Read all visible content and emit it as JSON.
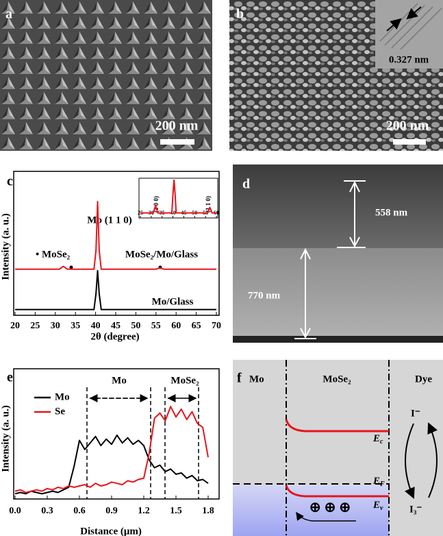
{
  "panels": {
    "a": {
      "label": "a",
      "scale_bar": "200 nm"
    },
    "b": {
      "label": "b",
      "scale_bar": "200 nm",
      "inset_label": "0.327 nm"
    },
    "c": {
      "label": "c",
      "annotations": [
        "Mo (1 1 0)",
        "• MoSe₂",
        "MoSe₂/Mo/Glass",
        "Mo/Glass"
      ],
      "inset_peaks": [
        "(1 0 0)",
        "(1 1 0)"
      ]
    },
    "d": {
      "label": "d",
      "top_thickness": "558 nm",
      "bottom_thickness": "770 nm"
    },
    "e": {
      "label": "e",
      "regions": [
        "Mo",
        "MoSe₂"
      ]
    },
    "f": {
      "label": "f",
      "columns": [
        "Mo",
        "MoSe₂",
        "Dye"
      ],
      "levels": [
        {
          "symbol": "E",
          "subscript": "c"
        },
        {
          "symbol": "E",
          "subscript": "F"
        },
        {
          "symbol": "E",
          "subscript": "v"
        }
      ],
      "holes": "⊕ ⊕ ⊕",
      "redox": [
        "I⁻",
        "I₃⁻"
      ]
    }
  },
  "chart_data": [
    {
      "type": "line",
      "xlabel": "2θ (degree)",
      "ylabel": "Intensity (a. u.)",
      "xlim": [
        20,
        70
      ],
      "xticks": [
        20,
        25,
        30,
        35,
        40,
        45,
        50,
        55,
        60,
        65,
        70
      ],
      "ylim": [
        0,
        10
      ],
      "x": [
        20,
        31,
        32,
        33,
        39.6,
        40.1,
        40.5,
        40.9,
        41.4,
        55,
        56,
        57,
        70
      ],
      "series": [
        {
          "name": "MoSe₂/Mo/Glass",
          "color": "#e8141b",
          "values": [
            3.2,
            3.2,
            3.4,
            3.2,
            3.2,
            4.5,
            7.9,
            4.5,
            3.2,
            3.2,
            3.3,
            3.2,
            3.2
          ]
        },
        {
          "name": "Mo/Glass",
          "color": "#000000",
          "values": [
            0.4,
            0.4,
            0.4,
            0.4,
            0.4,
            1.5,
            3.1,
            1.5,
            0.4,
            0.4,
            0.4,
            0.4,
            0.4
          ]
        }
      ]
    },
    {
      "type": "line",
      "xlim": [
        25,
        60
      ],
      "xticks": [
        25,
        30,
        35,
        40,
        45,
        50,
        55,
        60
      ],
      "ylim": [
        0,
        10
      ],
      "x": [
        25,
        31,
        32,
        33,
        39.5,
        40,
        40.5,
        41,
        41.5,
        56,
        57,
        58,
        60
      ],
      "series": [
        {
          "name": "MoSe₂/Mo/Glass",
          "color": "#e8141b",
          "values": [
            1,
            1,
            3,
            1,
            1,
            6,
            10,
            6,
            1,
            1,
            2.5,
            1,
            1
          ]
        }
      ]
    },
    {
      "type": "line",
      "xlabel": "Distance (μm)",
      "ylabel": "Intensity (a. u.)",
      "xlim": [
        0,
        1.8
      ],
      "xticks": [
        {
          "value": 0,
          "label": "0.0"
        },
        0.3,
        0.6,
        0.9,
        1.2,
        1.5,
        1.8
      ],
      "ylim": [
        0,
        10
      ],
      "x": [
        0,
        0.05,
        0.1,
        0.15,
        0.2,
        0.25,
        0.3,
        0.35,
        0.4,
        0.45,
        0.5,
        0.55,
        0.6,
        0.65,
        0.7,
        0.75,
        0.8,
        0.85,
        0.9,
        0.95,
        1.0,
        1.05,
        1.1,
        1.15,
        1.2,
        1.25,
        1.3,
        1.35,
        1.4,
        1.45,
        1.5,
        1.55,
        1.6,
        1.65,
        1.7,
        1.75,
        1.8
      ],
      "series": [
        {
          "name": "Mo",
          "color": "#000000",
          "values": [
            0.4,
            0.5,
            0.4,
            0.6,
            0.5,
            0.4,
            0.5,
            0.6,
            0.5,
            0.7,
            0.9,
            2.5,
            4.5,
            3.8,
            4.3,
            4.8,
            4.1,
            4.6,
            4.2,
            4.9,
            4.3,
            4.7,
            4.2,
            4.5,
            4.1,
            3.0,
            2.4,
            2.6,
            2.1,
            2.3,
            1.9,
            2.0,
            1.6,
            1.8,
            1.4,
            1.5,
            1.2
          ]
        },
        {
          "name": "Se",
          "color": "#e8141b",
          "values": [
            0.6,
            0.7,
            0.5,
            0.6,
            0.7,
            0.6,
            0.8,
            0.7,
            0.9,
            0.8,
            1.0,
            0.9,
            1.0,
            1.1,
            0.9,
            1.2,
            1.0,
            1.1,
            1.3,
            1.2,
            1.1,
            1.4,
            1.3,
            1.5,
            1.6,
            3.5,
            6.2,
            6.6,
            6.0,
            7.1,
            6.3,
            6.9,
            6.1,
            6.7,
            5.8,
            5.5,
            3.2
          ]
        }
      ]
    }
  ]
}
